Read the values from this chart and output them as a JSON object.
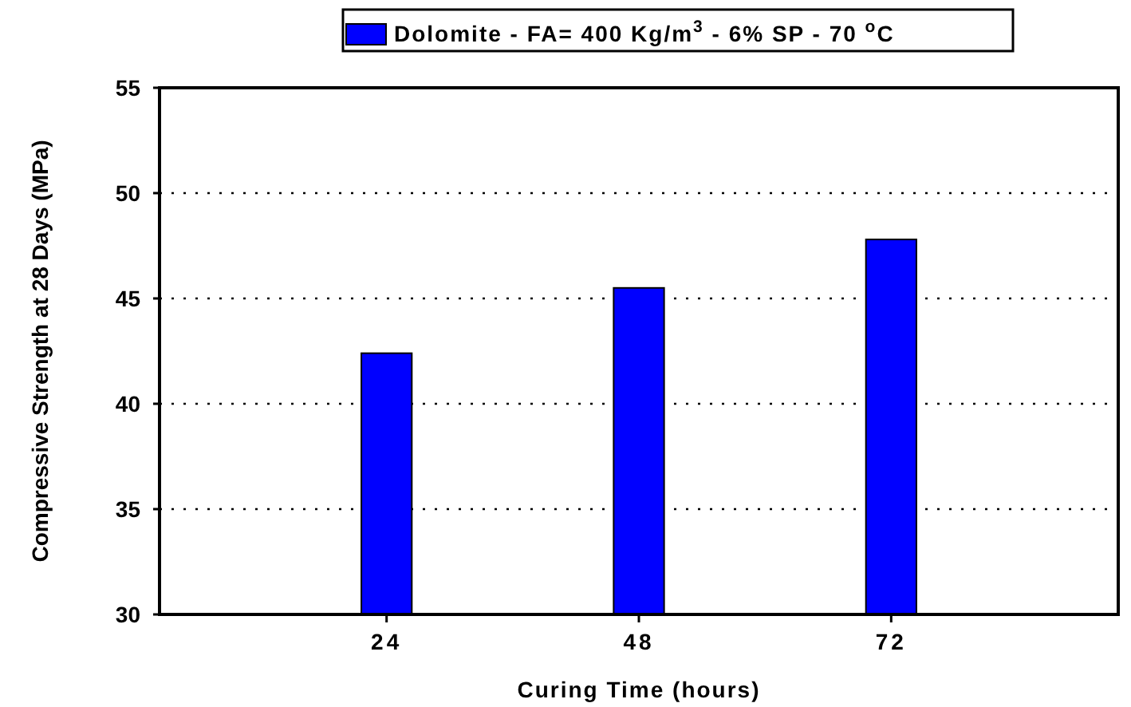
{
  "chart_data": {
    "type": "bar",
    "xlabel": "Curing Time (hours)",
    "ylabel": "Compressive Strength at 28 Days (MPa)",
    "categories": [
      "24",
      "48",
      "72"
    ],
    "series": [
      {
        "name": "Dolomite - FA= 400 Kg/m$^{3}$ - 6% SP - 70 $^{o}$C",
        "color": "#0000ff",
        "values": [
          42.4,
          45.5,
          47.8
        ]
      }
    ],
    "ylim": [
      30,
      55
    ],
    "yticks": [
      30,
      35,
      40,
      45,
      50,
      55
    ],
    "grid": "y",
    "legend": "top"
  }
}
